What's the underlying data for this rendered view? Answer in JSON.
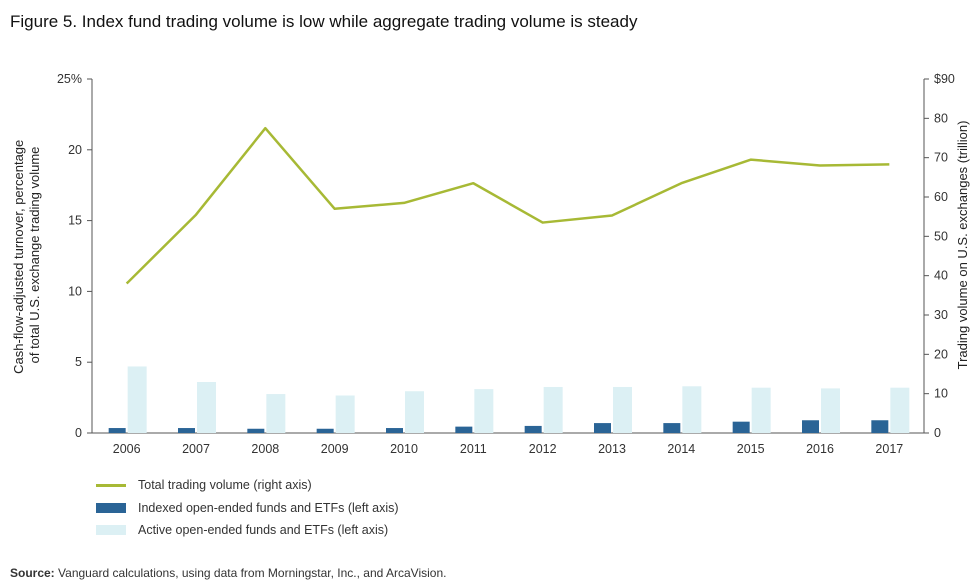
{
  "title": "Figure 5. Index fund trading volume is low while aggregate trading volume is steady",
  "source": {
    "label": "Source:",
    "text": "Vanguard calculations, using data from Morningstar, Inc., and ArcaVision."
  },
  "colors": {
    "line": "#a7b935",
    "indexed": "#2a6496",
    "active": "#dcf0f4"
  },
  "chart_data": {
    "type": "bar",
    "categories": [
      "2006",
      "2007",
      "2008",
      "2009",
      "2010",
      "2011",
      "2012",
      "2013",
      "2014",
      "2015",
      "2016",
      "2017"
    ],
    "left_axis": {
      "label": "Cash-flow-adjusted turnover, percentage of total U.S. exchange trading volume",
      "label_lines": [
        "Cash-flow-adjusted turnover, percentage",
        "of total U.S. exchange trading volume"
      ],
      "ylim": [
        0,
        25
      ],
      "ticks": [
        0,
        5,
        10,
        15,
        20,
        25
      ],
      "tick_labels": [
        "0",
        "5",
        "10",
        "15",
        "20",
        "25%"
      ]
    },
    "right_axis": {
      "label": "Trading volume on U.S. exchanges (trillion)",
      "ylim": [
        0,
        90
      ],
      "ticks": [
        0,
        10,
        20,
        30,
        40,
        50,
        60,
        70,
        80,
        90
      ],
      "tick_labels": [
        "0",
        "10",
        "20",
        "30",
        "40",
        "50",
        "60",
        "70",
        "80",
        "$90"
      ]
    },
    "series": [
      {
        "name": "Total trading volume (right axis)",
        "type": "line",
        "axis": "right",
        "values": [
          38.0,
          55.5,
          77.5,
          57.0,
          58.5,
          63.5,
          53.5,
          55.3,
          63.5,
          69.5,
          68.0,
          68.3
        ]
      },
      {
        "name": "Indexed open-ended funds and ETFs (left axis)",
        "type": "bar",
        "axis": "left",
        "values": [
          0.35,
          0.35,
          0.3,
          0.3,
          0.35,
          0.45,
          0.5,
          0.7,
          0.7,
          0.8,
          0.9,
          0.9
        ]
      },
      {
        "name": "Active open-ended funds and ETFs (left axis)",
        "type": "bar",
        "axis": "left",
        "values": [
          4.7,
          3.6,
          2.75,
          2.65,
          2.95,
          3.1,
          3.25,
          3.25,
          3.3,
          3.2,
          3.15,
          3.2
        ]
      }
    ],
    "legend_position": "bottom-left",
    "grid": false
  }
}
